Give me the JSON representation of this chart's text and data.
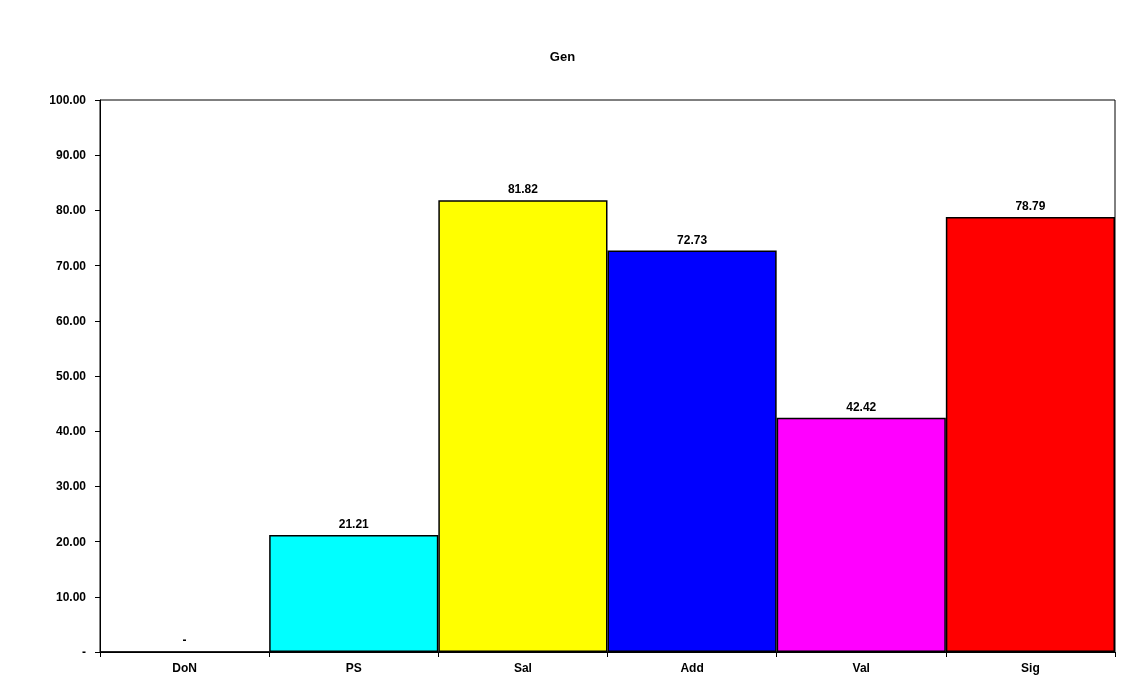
{
  "chart_data": {
    "type": "bar",
    "title": "Gen",
    "categories": [
      "DoN",
      "PS",
      "Sal",
      "Add",
      "Val",
      "Sig"
    ],
    "values": [
      0,
      21.21,
      81.82,
      72.73,
      42.42,
      78.79
    ],
    "colors": [
      "#000000",
      "#00ffff",
      "#ffff00",
      "#0000ff",
      "#ff00ff",
      "#ff0000"
    ],
    "value_labels": [
      "-",
      "21.21",
      "81.82",
      "72.73",
      "42.42",
      "78.79"
    ],
    "ylim": [
      0,
      100
    ],
    "yticks": [
      {
        "value": 0,
        "label": "-"
      },
      {
        "value": 10,
        "label": "10.00"
      },
      {
        "value": 20,
        "label": "20.00"
      },
      {
        "value": 30,
        "label": "30.00"
      },
      {
        "value": 40,
        "label": "40.00"
      },
      {
        "value": 50,
        "label": "50.00"
      },
      {
        "value": 60,
        "label": "60.00"
      },
      {
        "value": 70,
        "label": "70.00"
      },
      {
        "value": 80,
        "label": "80.00"
      },
      {
        "value": 90,
        "label": "90.00"
      },
      {
        "value": 100,
        "label": "100.00"
      }
    ],
    "grid": false
  }
}
